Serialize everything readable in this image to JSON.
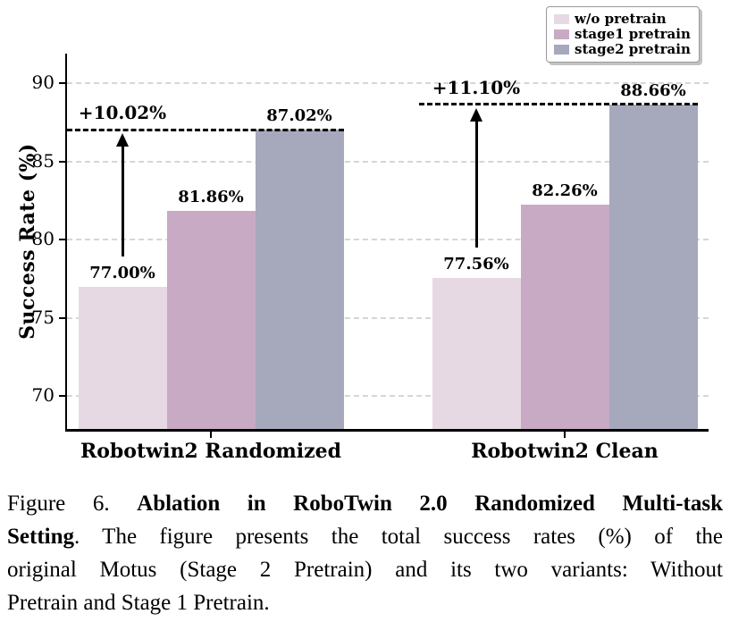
{
  "legend": {
    "items": [
      {
        "label": "w/o pretrain"
      },
      {
        "label": "stage1 pretrain"
      },
      {
        "label": "stage2 pretrain"
      }
    ]
  },
  "chart_data": {
    "type": "bar",
    "title": "",
    "xlabel": "",
    "ylabel": "Success Rate (%)",
    "ylim": [
      67.89,
      91.89
    ],
    "yticks": [
      70,
      75,
      80,
      85,
      90
    ],
    "grid": true,
    "grid_style": "dashed",
    "legend_position": "top-right",
    "categories": [
      "Robotwin2 Randomized",
      "Robotwin2 Clean"
    ],
    "series": [
      {
        "name": "w/o pretrain",
        "color": "#e7d9e3",
        "values": [
          77.0,
          77.56
        ],
        "labels": [
          "77.00%",
          "77.56%"
        ]
      },
      {
        "name": "stage1 pretrain",
        "color": "#c8aac4",
        "values": [
          81.86,
          82.26
        ],
        "labels": [
          "81.86%",
          "82.26%"
        ]
      },
      {
        "name": "stage2 pretrain",
        "color": "#a6a8bc",
        "values": [
          87.02,
          88.66
        ],
        "labels": [
          "87.02%",
          "88.66%"
        ]
      }
    ],
    "annotations": [
      {
        "label": "+10.02%",
        "category_index": 0,
        "dashline_value": 87.02
      },
      {
        "label": "+11.10%",
        "category_index": 1,
        "dashline_value": 88.66
      }
    ]
  },
  "caption": {
    "line1_regular": "Figure 6.",
    "line1_bold": "Ablation in RoboTwin 2.0 Randomized Multi-task",
    "line2_bold": "Setting",
    "line2_regular": ".  The figure presents the total success rates (%) of the",
    "line3": "original Motus (Stage 2 Pretrain) and its two variants:  Without",
    "line4": "Pretrain and Stage 1 Pretrain."
  }
}
